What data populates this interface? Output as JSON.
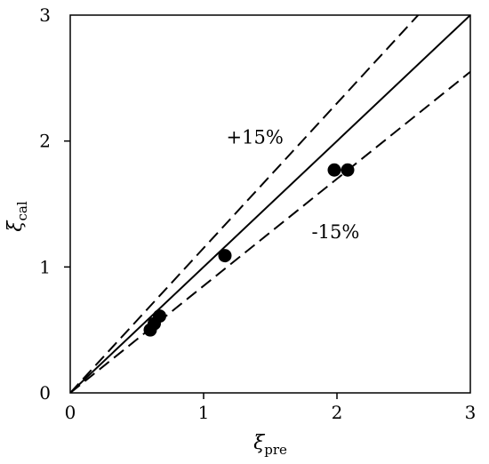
{
  "chart_data": {
    "type": "scatter",
    "title": "",
    "xlabel": {
      "symbol": "ξ",
      "subscript": "pre"
    },
    "ylabel": {
      "symbol": "ξ",
      "subscript": "cal"
    },
    "xlim": [
      0,
      3
    ],
    "ylim": [
      0,
      3
    ],
    "xticks": [
      0,
      1,
      2,
      3
    ],
    "yticks": [
      0,
      1,
      2,
      3
    ],
    "xtick_labels": [
      "0",
      "1",
      "2",
      "3"
    ],
    "ytick_labels": [
      "0",
      "1",
      "2",
      "3"
    ],
    "grid": false,
    "points": [
      {
        "x": 0.6,
        "y": 0.5
      },
      {
        "x": 0.63,
        "y": 0.55
      },
      {
        "x": 0.67,
        "y": 0.61
      },
      {
        "x": 1.16,
        "y": 1.09
      },
      {
        "x": 1.98,
        "y": 1.77
      },
      {
        "x": 2.08,
        "y": 1.77
      }
    ],
    "reference_lines": [
      {
        "slope": 1.0,
        "style": "solid"
      },
      {
        "slope": 1.15,
        "style": "dashed"
      },
      {
        "slope": 0.85,
        "style": "dashed"
      }
    ],
    "annotations": [
      {
        "text": "+15%",
        "x": 1.17,
        "y": 1.98
      },
      {
        "text": "-15%",
        "x": 1.81,
        "y": 1.23
      }
    ]
  }
}
